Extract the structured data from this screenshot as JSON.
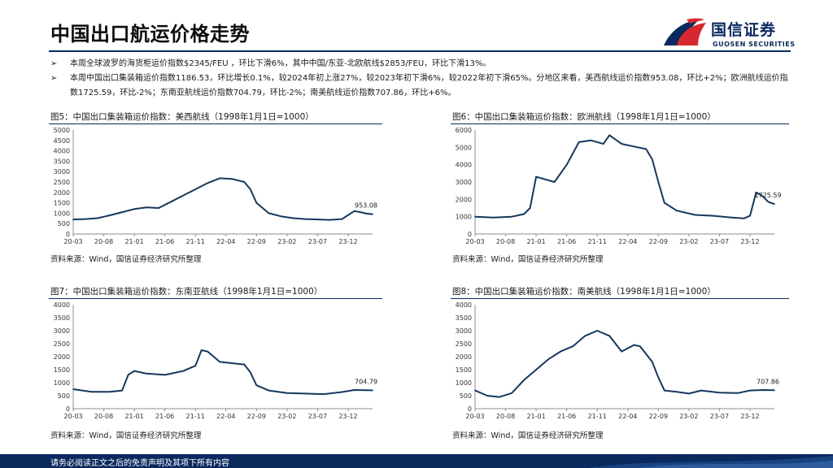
{
  "page_title": "中国出口航运价格走势",
  "logo": {
    "name_cn": "国信证券",
    "name_en": "GUOSEN SECURITIES"
  },
  "bullets": [
    "本周全球波罗的海货柜运价指数$2345/FEU ，环比下滑6%，其中中国/东亚-北欧航线$2853/FEU，环比下滑13%。",
    "本周中国出口集装箱运价指数1186.53，环比增长0.1%，较2024年初上涨27%，较2023年初下滑6%，较2022年初下滑65%。分地区来看，美西航线运价指数953.08，环比+2%；欧洲航线运价指数1725.59，环比-2%；东南亚航线运价指数704.79，环比-2%；南美航线运价指数707.86，环比+6%。"
  ],
  "bullet_mark": "➢",
  "source_text": "资料来源：Wind，国信证券经济研究所整理",
  "footer_text": "请务必阅读正文之后的免责声明及其项下所有内容",
  "colors": {
    "line": "#17375e",
    "brand": "#0a2a5e",
    "logo_red": "#d7282f"
  },
  "figures": [
    {
      "title": "图5：中国出口集装箱运价指数：美西航线（1998年1月1日=1000）",
      "source": "资料来源：Wind，国信证券经济研究所整理"
    },
    {
      "title": "图6：中国出口集装箱运价指数：欧洲航线（1998年1月1日=1000）",
      "source": "资料来源：Wind，国信证券经济研究所整理"
    },
    {
      "title": "图7：中国出口集装箱运价指数：东南亚航线（1998年1月1日=1000）",
      "source": "资料来源：Wind，国信证券经济研究所整理"
    },
    {
      "title": "图8：中国出口集装箱运价指数：南美航线（1998年1月1日=1000）",
      "source": "资料来源：Wind，国信证券经济研究所整理"
    }
  ],
  "chart_data": [
    {
      "type": "line",
      "title": "中国出口集装箱运价指数：美西航线（1998年1月1日=1000）",
      "xlabel": "",
      "ylabel": "",
      "ylim": [
        0,
        5000
      ],
      "yticks": [
        0,
        500,
        1000,
        1500,
        2000,
        2500,
        3000,
        3500,
        4000,
        4500,
        5000
      ],
      "xlim": [
        "2020-03",
        "2024-04"
      ],
      "xticks": [
        "20-03",
        "20-08",
        "21-01",
        "21-06",
        "21-11",
        "22-04",
        "22-09",
        "23-02",
        "23-07",
        "23-12"
      ],
      "grid": false,
      "last_label": "953.08",
      "x": [
        "2020-03",
        "2020-05",
        "2020-07",
        "2020-09",
        "2020-11",
        "2021-01",
        "2021-03",
        "2021-05",
        "2021-07",
        "2021-09",
        "2021-11",
        "2022-01",
        "2022-03",
        "2022-05",
        "2022-07",
        "2022-08",
        "2022-09",
        "2022-11",
        "2023-01",
        "2023-03",
        "2023-05",
        "2023-07",
        "2023-09",
        "2023-11",
        "2024-01",
        "2024-02",
        "2024-03",
        "2024-04"
      ],
      "y": [
        700,
        720,
        760,
        900,
        1050,
        1200,
        1280,
        1250,
        1550,
        1850,
        2150,
        2450,
        2680,
        2650,
        2500,
        2150,
        1500,
        1000,
        850,
        760,
        720,
        700,
        680,
        720,
        1100,
        1050,
        980,
        953
      ]
    },
    {
      "type": "line",
      "title": "中国出口集装箱运价指数：欧洲航线（1998年1月1日=1000）",
      "xlabel": "",
      "ylabel": "",
      "ylim": [
        0,
        6000
      ],
      "yticks": [
        0,
        1000,
        2000,
        3000,
        4000,
        5000,
        6000
      ],
      "xlim": [
        "2020-03",
        "2024-04"
      ],
      "xticks": [
        "20-03",
        "20-08",
        "21-01",
        "21-06",
        "21-11",
        "22-04",
        "22-09",
        "23-02",
        "23-07",
        "23-12"
      ],
      "grid": false,
      "last_label": "1725.59",
      "x": [
        "2020-03",
        "2020-06",
        "2020-09",
        "2020-11",
        "2020-12",
        "2021-01",
        "2021-02",
        "2021-04",
        "2021-06",
        "2021-08",
        "2021-10",
        "2021-12",
        "2022-01",
        "2022-03",
        "2022-05",
        "2022-07",
        "2022-08",
        "2022-09",
        "2022-10",
        "2022-12",
        "2023-03",
        "2023-06",
        "2023-09",
        "2023-11",
        "2023-12",
        "2024-01",
        "2024-02",
        "2024-03",
        "2024-04"
      ],
      "y": [
        1000,
        950,
        1000,
        1150,
        1500,
        3300,
        3200,
        3000,
        4000,
        5300,
        5400,
        5200,
        5700,
        5200,
        5050,
        4900,
        4300,
        3000,
        1800,
        1350,
        1100,
        1050,
        950,
        900,
        1050,
        2400,
        2200,
        1850,
        1726
      ]
    },
    {
      "type": "line",
      "title": "中国出口集装箱运价指数：东南亚航线（1998年1月1日=1000）",
      "xlabel": "",
      "ylabel": "",
      "ylim": [
        0,
        4000
      ],
      "yticks": [
        0,
        500,
        1000,
        1500,
        2000,
        2500,
        3000,
        3500,
        4000
      ],
      "xlim": [
        "2020-03",
        "2024-04"
      ],
      "xticks": [
        "20-03",
        "20-08",
        "21-01",
        "21-06",
        "21-11",
        "22-04",
        "22-09",
        "23-02",
        "23-07",
        "23-12"
      ],
      "grid": false,
      "last_label": "704.79",
      "x": [
        "2020-03",
        "2020-06",
        "2020-09",
        "2020-11",
        "2020-12",
        "2021-01",
        "2021-03",
        "2021-06",
        "2021-09",
        "2021-11",
        "2021-12",
        "2022-01",
        "2022-03",
        "2022-05",
        "2022-07",
        "2022-08",
        "2022-09",
        "2022-11",
        "2023-02",
        "2023-05",
        "2023-08",
        "2023-11",
        "2024-01",
        "2024-04"
      ],
      "y": [
        750,
        650,
        650,
        700,
        1300,
        1450,
        1350,
        1300,
        1450,
        1650,
        2250,
        2200,
        1800,
        1750,
        1700,
        1400,
        900,
        700,
        600,
        580,
        560,
        640,
        720,
        705
      ]
    },
    {
      "type": "line",
      "title": "中国出口集装箱运价指数：南美航线（1998年1月1日=1000）",
      "xlabel": "",
      "ylabel": "",
      "ylim": [
        0,
        4000
      ],
      "yticks": [
        0,
        500,
        1000,
        1500,
        2000,
        2500,
        3000,
        3500,
        4000
      ],
      "xlim": [
        "2020-03",
        "2024-04"
      ],
      "xticks": [
        "20-03",
        "20-08",
        "21-01",
        "21-06",
        "21-11",
        "22-04",
        "22-09",
        "23-02",
        "23-07",
        "23-12"
      ],
      "grid": false,
      "last_label": "707.86",
      "x": [
        "2020-03",
        "2020-05",
        "2020-07",
        "2020-09",
        "2020-11",
        "2021-01",
        "2021-03",
        "2021-05",
        "2021-07",
        "2021-09",
        "2021-11",
        "2022-01",
        "2022-03",
        "2022-05",
        "2022-06",
        "2022-08",
        "2022-09",
        "2022-10",
        "2022-12",
        "2023-02",
        "2023-04",
        "2023-07",
        "2023-10",
        "2023-12",
        "2024-02",
        "2024-04"
      ],
      "y": [
        700,
        500,
        450,
        600,
        1100,
        1500,
        1900,
        2200,
        2400,
        2800,
        3000,
        2800,
        2200,
        2450,
        2400,
        1800,
        1200,
        700,
        650,
        580,
        700,
        620,
        600,
        700,
        720,
        708
      ]
    }
  ]
}
